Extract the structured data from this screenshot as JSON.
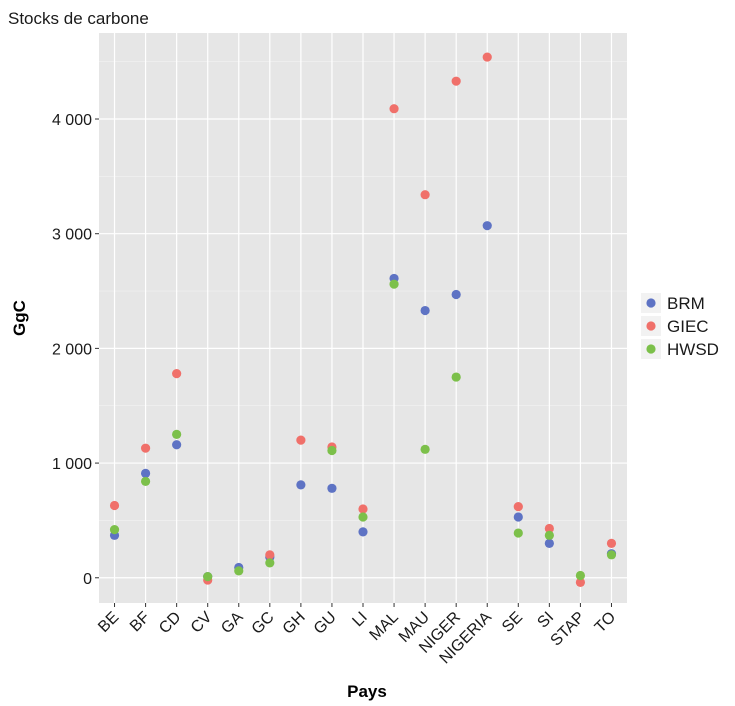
{
  "chart_data": {
    "type": "scatter",
    "title": "Stocks de carbone",
    "xlabel": "Pays",
    "ylabel": "GgC",
    "ylim": [
      -220,
      4750
    ],
    "yticks": [
      0,
      1000,
      2000,
      3000,
      4000
    ],
    "ytick_labels": [
      "0",
      "1 000",
      "2 000",
      "3 000",
      "4 000"
    ],
    "categories": [
      "BE",
      "BF",
      "CD",
      "CV",
      "GA",
      "GC",
      "GH",
      "GU",
      "LI",
      "MAL",
      "MAU",
      "NIGER",
      "NIGERIA",
      "SE",
      "SI",
      "STAP",
      "TO"
    ],
    "grid": true,
    "legend_position": "right",
    "series": [
      {
        "name": "BRM",
        "color": "#5e73c4",
        "values": [
          370,
          910,
          1160,
          10,
          90,
          180,
          810,
          780,
          400,
          2610,
          2330,
          2470,
          3070,
          530,
          300,
          null,
          210
        ]
      },
      {
        "name": "GIEC",
        "color": "#f0706a",
        "values": [
          630,
          1130,
          1780,
          -20,
          null,
          200,
          1200,
          1140,
          600,
          4090,
          3340,
          4330,
          4540,
          620,
          430,
          -40,
          300
        ]
      },
      {
        "name": "HWSD",
        "color": "#7cc04a",
        "values": [
          420,
          840,
          1250,
          10,
          60,
          130,
          null,
          1110,
          530,
          2560,
          1120,
          1750,
          null,
          390,
          370,
          20,
          200
        ]
      }
    ]
  }
}
